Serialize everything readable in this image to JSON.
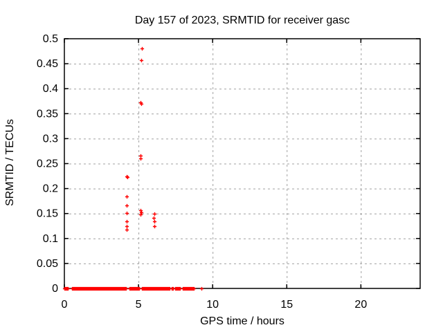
{
  "window": {
    "background": "#ffffff"
  },
  "chart_data": {
    "type": "scatter",
    "title": "Day 157 of 2023, SRMTID for receiver gasc",
    "xlabel": "GPS time / hours",
    "ylabel": "SRMTID / TECUs",
    "xlim": [
      0,
      24
    ],
    "ylim": [
      0,
      0.5
    ],
    "xticks": [
      0,
      5,
      10,
      15,
      20
    ],
    "xtick_labels": [
      "0",
      "5",
      "10",
      "15",
      "20"
    ],
    "yticks": [
      0,
      0.05,
      0.1,
      0.15,
      0.2,
      0.25,
      0.3,
      0.35,
      0.4,
      0.45,
      0.5
    ],
    "ytick_labels": [
      "0",
      "0.05",
      "0.1",
      "0.15",
      "0.2",
      "0.25",
      "0.3",
      "0.35",
      "0.4",
      "0.45",
      "0.5"
    ],
    "grid": true,
    "legend_position": "none",
    "colors": {
      "marker": "#ff0000",
      "grid": "#a0a0a0",
      "axis": "#000000",
      "background": "#ffffff"
    },
    "series": [
      {
        "name": "SRMTID",
        "marker": "plus",
        "color": "#ff0000",
        "points": [
          [
            4.19,
            0.225
          ],
          [
            4.25,
            0.223
          ],
          [
            4.22,
            0.184
          ],
          [
            4.22,
            0.166
          ],
          [
            4.22,
            0.151
          ],
          [
            4.22,
            0.135
          ],
          [
            4.18,
            0.124
          ],
          [
            4.22,
            0.118
          ],
          [
            5.21,
            0.48
          ],
          [
            5.17,
            0.457
          ],
          [
            5.14,
            0.373
          ],
          [
            5.17,
            0.37
          ],
          [
            5.15,
            0.266
          ],
          [
            5.15,
            0.26
          ],
          [
            5.14,
            0.157
          ],
          [
            5.17,
            0.152
          ],
          [
            5.15,
            0.148
          ],
          [
            6.06,
            0.149
          ],
          [
            6.02,
            0.141
          ],
          [
            6.06,
            0.134
          ],
          [
            6.06,
            0.124
          ],
          [
            9.23,
            0.0
          ]
        ],
        "baseline": {
          "y": 0.0,
          "segments": [
            [
              0.0,
              0.26
            ],
            [
              0.5,
              4.15
            ],
            [
              4.38,
              5.07
            ],
            [
              5.24,
              7.1
            ],
            [
              7.22,
              7.33
            ],
            [
              7.45,
              7.85
            ],
            [
              7.99,
              8.74
            ]
          ],
          "point_step_hours": 0.045
        }
      }
    ]
  }
}
